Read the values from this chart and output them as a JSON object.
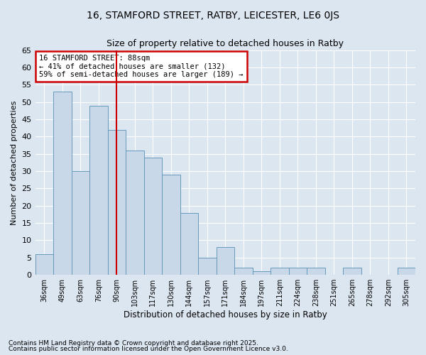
{
  "title1": "16, STAMFORD STREET, RATBY, LEICESTER, LE6 0JS",
  "title2": "Size of property relative to detached houses in Ratby",
  "xlabel": "Distribution of detached houses by size in Ratby",
  "ylabel": "Number of detached properties",
  "categories": [
    "36sqm",
    "49sqm",
    "63sqm",
    "76sqm",
    "90sqm",
    "103sqm",
    "117sqm",
    "130sqm",
    "144sqm",
    "157sqm",
    "171sqm",
    "184sqm",
    "197sqm",
    "211sqm",
    "224sqm",
    "238sqm",
    "251sqm",
    "265sqm",
    "278sqm",
    "292sqm",
    "305sqm"
  ],
  "values": [
    6,
    53,
    30,
    49,
    42,
    36,
    34,
    29,
    18,
    5,
    8,
    2,
    1,
    2,
    2,
    2,
    0,
    2,
    0,
    0,
    2
  ],
  "bar_color": "#c8d8e8",
  "bar_edge_color": "#6699bb",
  "vline_x": 4,
  "vline_color": "#cc0000",
  "annotation_text": "16 STAMFORD STREET: 88sqm\n← 41% of detached houses are smaller (132)\n59% of semi-detached houses are larger (189) →",
  "annotation_box_color": "#ffffff",
  "annotation_box_edge": "#cc0000",
  "fig_bg_color": "#dce6f0",
  "plot_bg_color": "#dce6f0",
  "grid_color": "#ffffff",
  "footer1": "Contains HM Land Registry data © Crown copyright and database right 2025.",
  "footer2": "Contains public sector information licensed under the Open Government Licence v3.0.",
  "ylim": [
    0,
    65
  ],
  "yticks": [
    0,
    5,
    10,
    15,
    20,
    25,
    30,
    35,
    40,
    45,
    50,
    55,
    60,
    65
  ]
}
